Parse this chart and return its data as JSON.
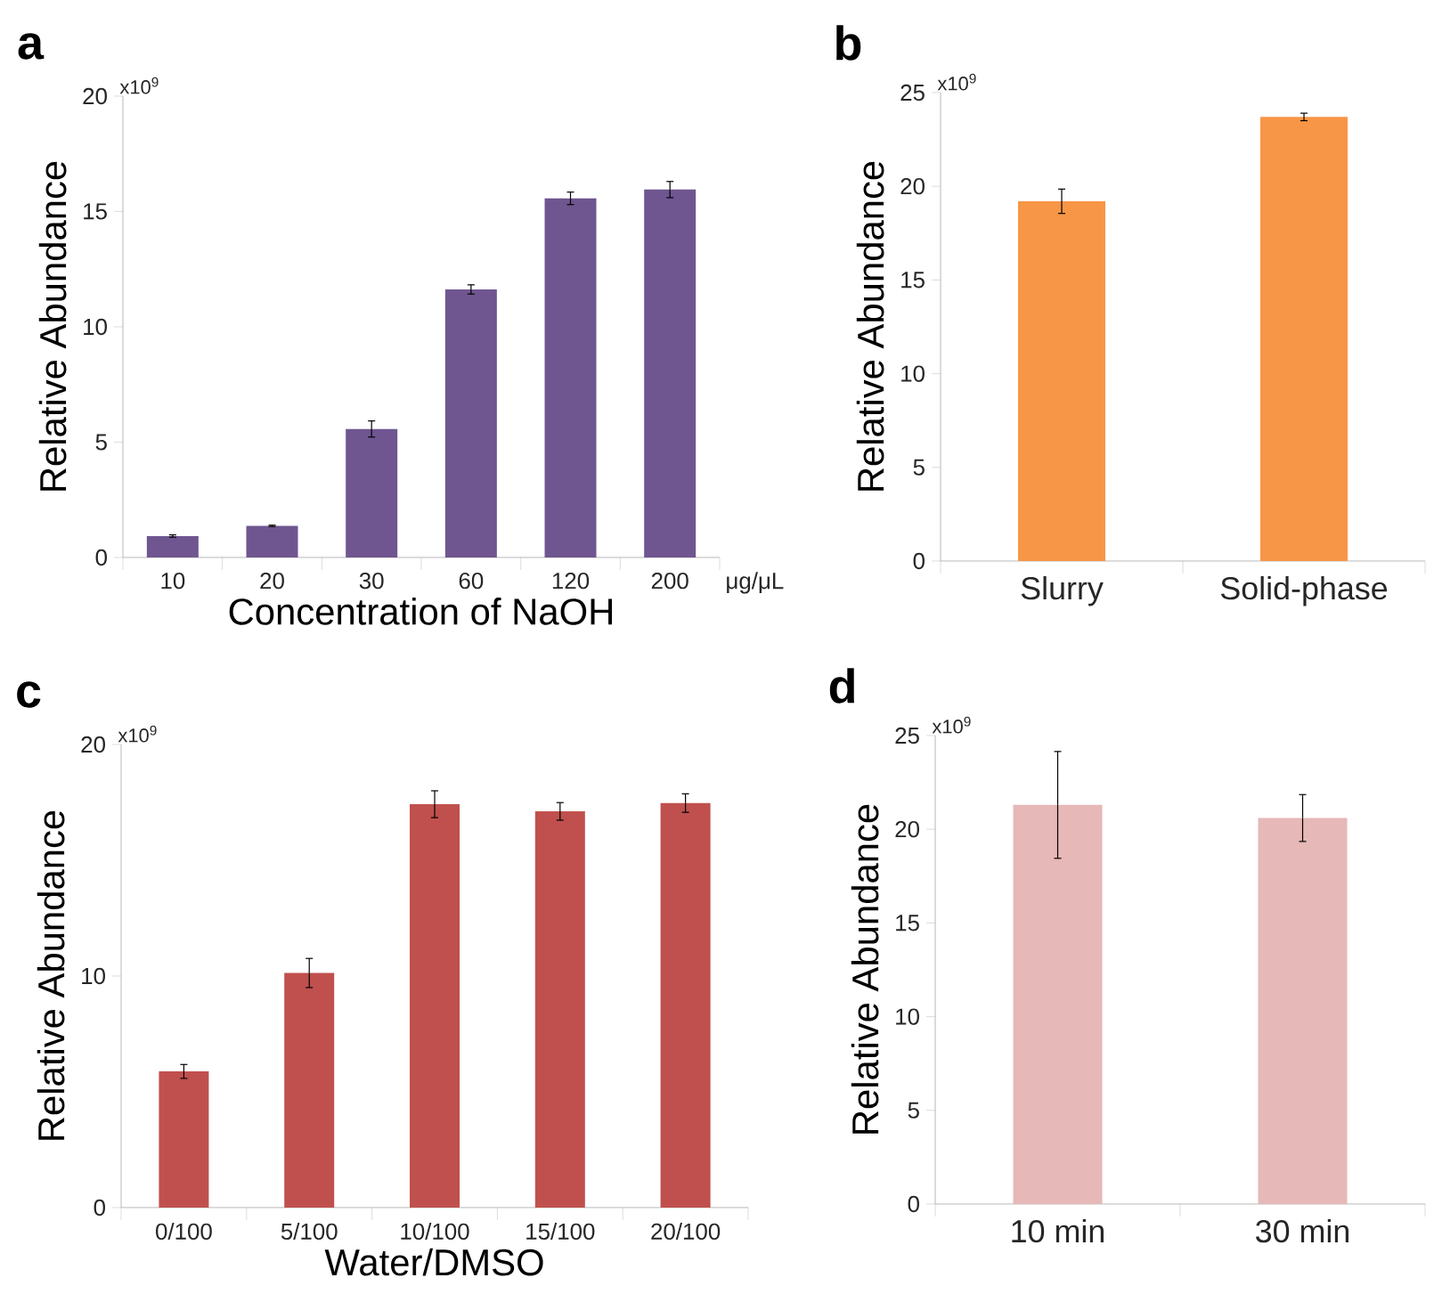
{
  "chart_data": [
    {
      "type": "bar",
      "title": "a",
      "categories": [
        "10",
        "20",
        "30",
        "60",
        "120",
        "200"
      ],
      "values": [
        0.93,
        1.37,
        5.57,
        11.62,
        15.57,
        15.95
      ],
      "errors": [
        0.05,
        0.03,
        0.35,
        0.2,
        0.27,
        0.35
      ],
      "color": "#6f5690",
      "xlabel": "Concentration of NaOH",
      "ylabel": "Relative Abundance",
      "ylim": [
        0,
        20
      ],
      "yticks": [
        0,
        5,
        10,
        15,
        20
      ],
      "annotations": [
        "x10$^{9}$",
        "μg/μL"
      ]
    },
    {
      "type": "bar",
      "title": "b",
      "categories": [
        "Slurry",
        "Solid-phase"
      ],
      "values": [
        19.2,
        23.7
      ],
      "errors": [
        0.65,
        0.2
      ],
      "color": "#f79646",
      "ylabel": "Relative Abundance",
      "ylim": [
        0,
        25
      ],
      "yticks": [
        0,
        5,
        10,
        15,
        20,
        25
      ],
      "annotations": [
        "x10$^{9}$"
      ]
    },
    {
      "type": "bar",
      "title": "c",
      "categories": [
        "0/100",
        "5/100",
        "10/100",
        "15/100",
        "20/100"
      ],
      "values": [
        5.88,
        10.13,
        17.42,
        17.11,
        17.47
      ],
      "errors": [
        0.3,
        0.63,
        0.58,
        0.38,
        0.4
      ],
      "color": "#c0504d",
      "xlabel": "Water/DMSO",
      "ylabel": "Relative Abundance",
      "ylim": [
        0,
        20
      ],
      "yticks": [
        0,
        10,
        20
      ],
      "annotations": [
        "x10$^{9}$"
      ]
    },
    {
      "type": "bar",
      "title": "d",
      "categories": [
        "10 min",
        "30 min"
      ],
      "values": [
        21.3,
        20.6
      ],
      "errors": [
        2.85,
        1.25
      ],
      "color": "#e6b8b7",
      "ylabel": "Relative Abundance",
      "ylim": [
        0,
        25
      ],
      "yticks": [
        0,
        5,
        10,
        15,
        20,
        25
      ],
      "annotations": [
        "x10$^{9}$"
      ]
    }
  ]
}
